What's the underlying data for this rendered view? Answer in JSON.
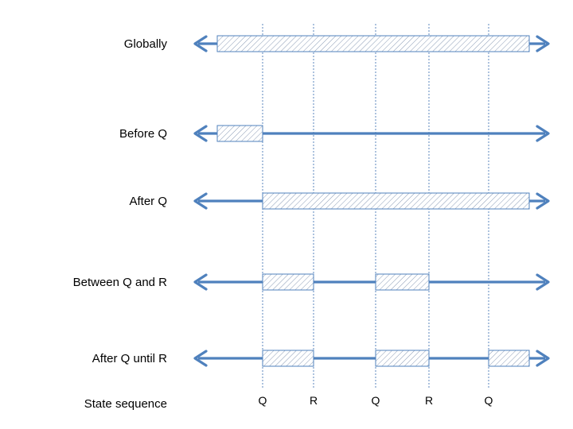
{
  "rows": [
    {
      "label": "Globally",
      "intervals": [
        [
          "start",
          "end"
        ]
      ]
    },
    {
      "label": "Before Q",
      "intervals": [
        [
          "start",
          "Q1"
        ]
      ]
    },
    {
      "label": "After Q",
      "intervals": [
        [
          "Q1",
          "end"
        ]
      ]
    },
    {
      "label": "Between Q and R",
      "intervals": [
        [
          "Q1",
          "R1"
        ],
        [
          "Q2",
          "R2"
        ]
      ]
    },
    {
      "label": "After Q until R",
      "intervals": [
        [
          "Q1",
          "R1"
        ],
        [
          "Q2",
          "R2"
        ],
        [
          "Q3",
          "end"
        ]
      ]
    }
  ],
  "state_sequence": {
    "label": "State sequence",
    "states": [
      "Q",
      "R",
      "Q",
      "R",
      "Q"
    ]
  },
  "colors": {
    "line": "#4f81bd",
    "guide": "#4a7ab5",
    "hatch": "#8a9bb5"
  }
}
